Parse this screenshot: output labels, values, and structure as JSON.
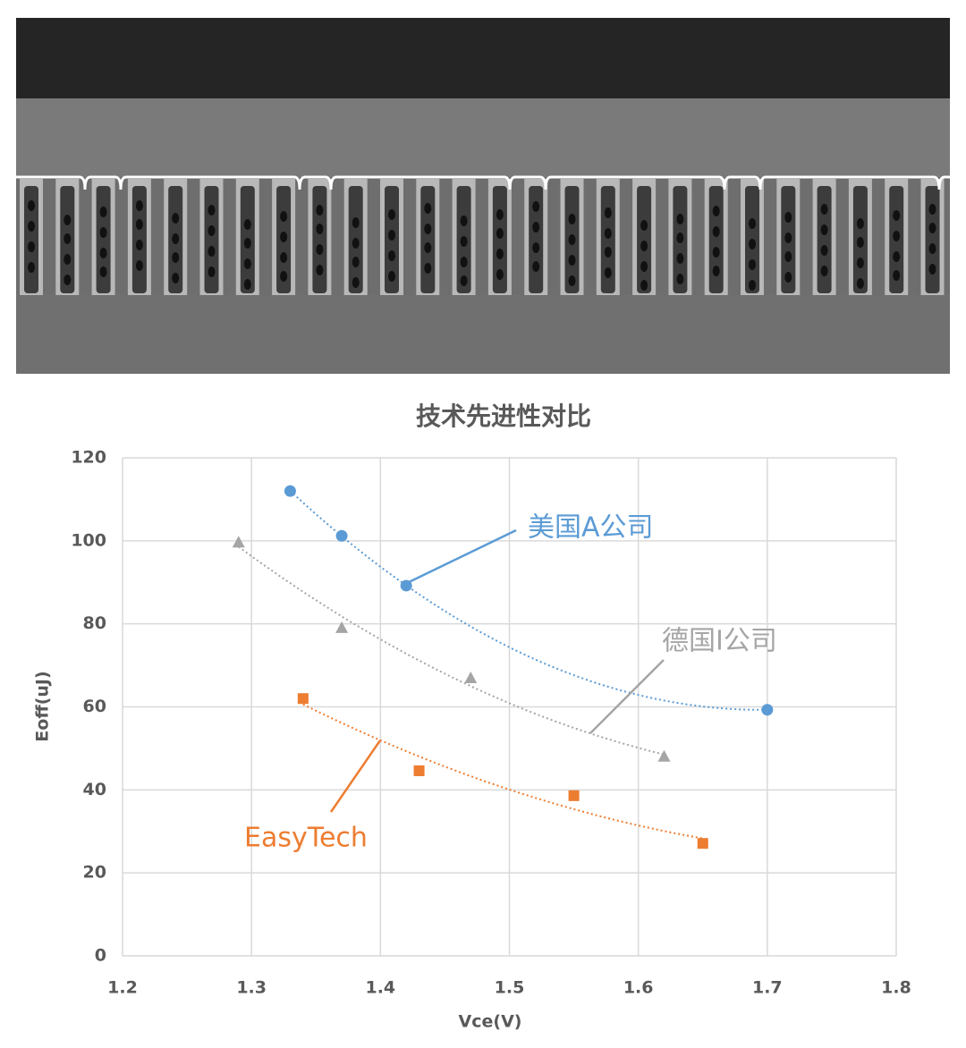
{
  "chart_data": {
    "type": "scatter",
    "title": "技术先进性对比",
    "x_label": "Vce(V)",
    "y_label": "Eoff(uJ)",
    "xlim": [
      1.2,
      1.8
    ],
    "xticks": [
      1.2,
      1.3,
      1.4,
      1.5,
      1.6,
      1.7,
      1.8
    ],
    "ylim": [
      0,
      120
    ],
    "yticks": [
      0,
      20,
      40,
      60,
      80,
      100,
      120
    ],
    "grid": true,
    "trendline": true,
    "series": [
      {
        "name": "美国A公司",
        "color": "#5b9bd5",
        "marker": "circle",
        "x": [
          1.33,
          1.37,
          1.42,
          1.7
        ],
        "values": [
          112,
          101.2,
          89.2,
          59.3
        ]
      },
      {
        "name": "德国I公司",
        "color": "#a5a5a5",
        "marker": "triangle",
        "x": [
          1.29,
          1.37,
          1.47,
          1.62
        ],
        "values": [
          99.7,
          79.1,
          67,
          48.1
        ]
      },
      {
        "name": "EasyTech",
        "color": "#ed7d31",
        "marker": "square",
        "x": [
          1.34,
          1.43,
          1.55,
          1.65
        ],
        "values": [
          62,
          44.6,
          38.6,
          27.1
        ]
      }
    ]
  }
}
